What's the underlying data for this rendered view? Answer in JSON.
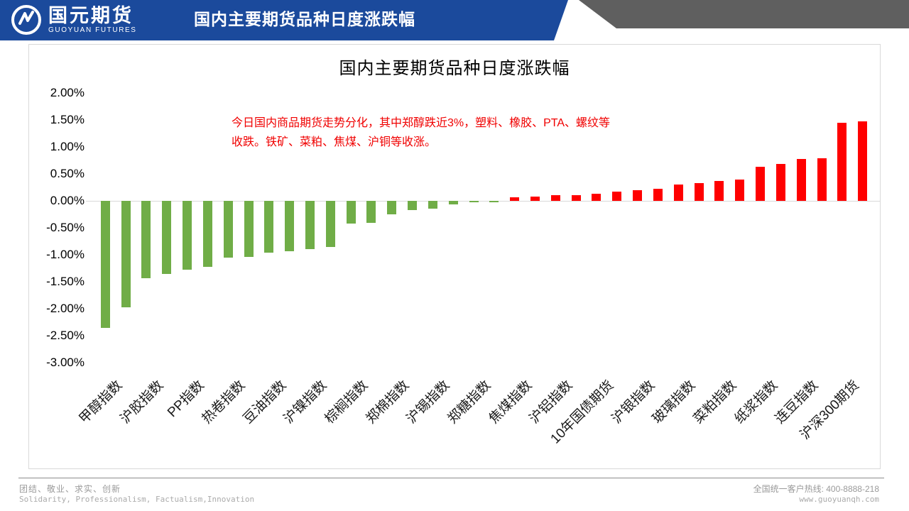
{
  "header": {
    "brand_name": "国元期货",
    "brand_subtitle": "GUOYUAN FUTURES",
    "title": "国内主要期货品种日度涨跌幅"
  },
  "chart_data": {
    "type": "bar",
    "title": "国内主要期货品种日度涨跌幅",
    "annotation_line1": "今日国内商品期货走势分化，其中郑醇跌近3%，塑料、橡胶、PTA、螺纹等",
    "annotation_line2": "收跌。铁矿、菜粕、焦煤、沪铜等收涨。",
    "ylim": [
      -3.0,
      2.0
    ],
    "yticks": [
      "2.00%",
      "1.50%",
      "1.00%",
      "0.50%",
      "0.00%",
      "-0.50%",
      "-1.00%",
      "-1.50%",
      "-2.00%",
      "-2.50%",
      "-3.00%"
    ],
    "values_pct": [
      -2.35,
      -1.97,
      -1.43,
      -1.36,
      -1.27,
      -1.22,
      -1.05,
      -1.04,
      -0.96,
      -0.94,
      -0.89,
      -0.85,
      -0.42,
      -0.41,
      -0.25,
      -0.17,
      -0.14,
      -0.07,
      -0.03,
      -0.02,
      0.07,
      0.08,
      0.1,
      0.11,
      0.13,
      0.17,
      0.2,
      0.22,
      0.3,
      0.33,
      0.37,
      0.4,
      0.63,
      0.68,
      0.77,
      0.79,
      1.45,
      1.47
    ],
    "categories_visible": [
      "甲醇指数",
      "沪胶指数",
      "PP指数",
      "热卷指数",
      "豆油指数",
      "沪镍指数",
      "棕榈指数",
      "郑棉指数",
      "沪锡指数",
      "郑糖指数",
      "焦煤指数",
      "沪铝指数",
      "10年国债期货",
      "沪银指数",
      "玻璃指数",
      "菜粕指数",
      "纸浆指数",
      "连豆指数",
      "沪深300期货"
    ],
    "label_every_n_bars": 2,
    "colors": {
      "negative_bar": "#70AD47",
      "positive_bar": "#FF0000",
      "annotation_text": "#F00000"
    },
    "gridlines": "zero-line-only",
    "legend": "none"
  },
  "footer": {
    "slogan_cn": "团结、敬业、求实、创新",
    "slogan_en": "Solidarity, Professionalism, Factualism,Innovation",
    "hotline": "全国统一客户热线: 400-8888-218",
    "website": "www.guoyuanqh.com"
  }
}
